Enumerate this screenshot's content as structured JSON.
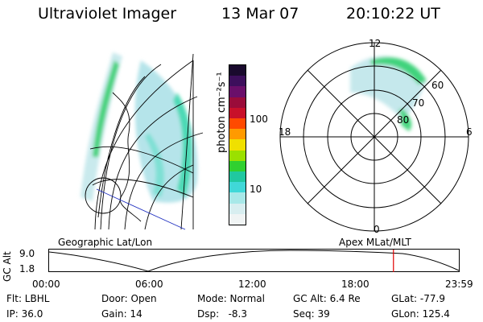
{
  "header": {
    "title": "Ultraviolet Imager",
    "date": "13 Mar 07",
    "time": "20:10:22 UT"
  },
  "colorbar": {
    "unit_label": "photon cm⁻²s⁻¹",
    "ticks": [
      "100",
      "10"
    ],
    "colors": [
      "#1a0a2e",
      "#3d0f5c",
      "#6a0f6a",
      "#9a0c3a",
      "#c8102a",
      "#ff4a00",
      "#ff9a00",
      "#f0e000",
      "#9be000",
      "#30d030",
      "#20c8a0",
      "#40d8d8",
      "#a8e8e8",
      "#d8eef0",
      "#f0f4f4"
    ]
  },
  "polar": {
    "hour_labels": [
      "12",
      "18",
      "6",
      "0"
    ],
    "lat_labels": [
      "60",
      "70",
      "80"
    ]
  },
  "track": {
    "left_label": "Geographic Lat/Lon",
    "right_label": "Apex MLat/MLT",
    "ylabel": "GC Alt",
    "yticks": [
      "9.0",
      "1.8"
    ],
    "xticks": [
      "00:00",
      "06:00",
      "12:00",
      "18:00",
      "23:59"
    ],
    "marker_fraction": 0.8404,
    "marker_color": "#e00000"
  },
  "info": {
    "flt": "Flt: LBHL",
    "ip": "IP: 36.0",
    "door": "Door: Open",
    "gain": "Gain: 14",
    "mode": "Mode: Normal",
    "dsp": "Dsp:   -8.3",
    "gcalt": "GC Alt: 6.4 Re",
    "seq": "Seq: 39",
    "glat": "GLat: -77.9",
    "glon": "GLon: 125.4"
  }
}
